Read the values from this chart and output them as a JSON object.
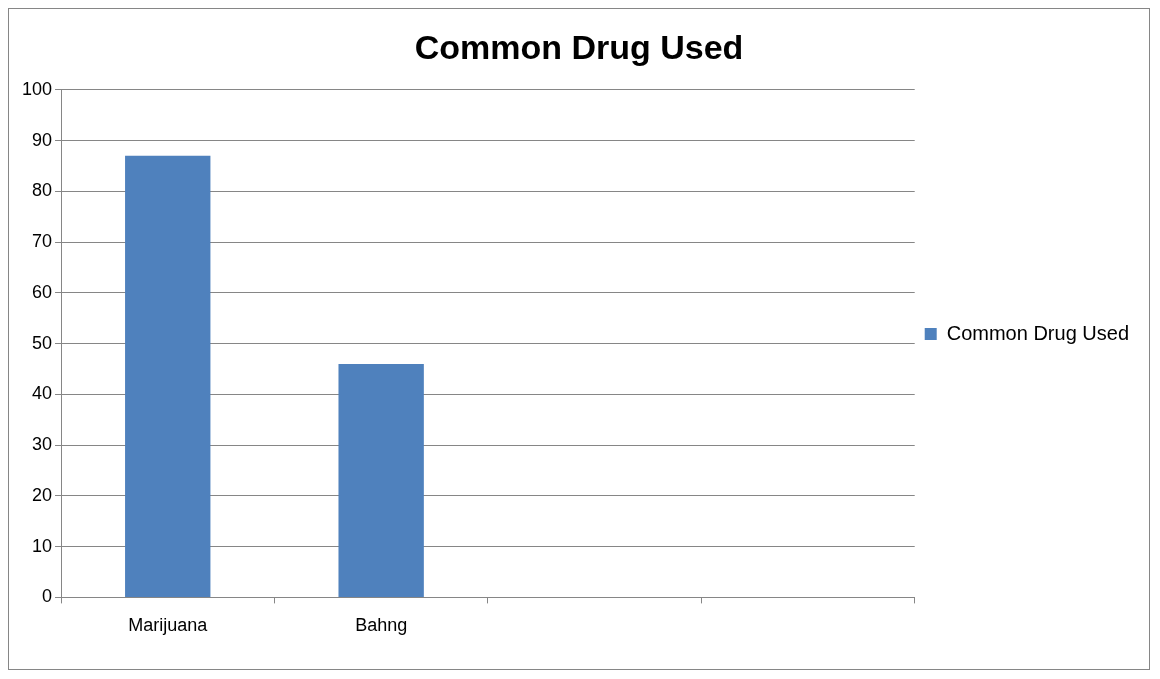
{
  "chart_data": {
    "type": "bar",
    "title": "Common Drug Used",
    "categories": [
      "Marijuana",
      "Bahng",
      null,
      null
    ],
    "series": [
      {
        "name": "Common Drug Used",
        "color": "#4f81bd",
        "values": [
          87,
          46,
          null,
          null
        ]
      }
    ],
    "ylim": [
      0,
      100
    ],
    "yticks": [
      0,
      10,
      20,
      30,
      40,
      50,
      60,
      70,
      80,
      90,
      100
    ],
    "grid": "y",
    "legend": "right"
  }
}
